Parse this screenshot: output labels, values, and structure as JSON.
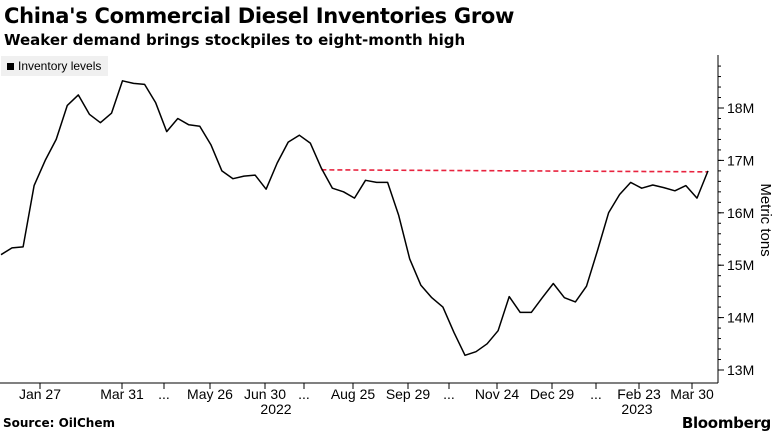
{
  "header": {
    "title": "China's Commercial Diesel Inventories Grow",
    "subtitle": "Weaker demand brings stockpiles to eight-month high"
  },
  "footer": {
    "source": "Source: OilChem",
    "brand": "Bloomberg"
  },
  "colors": {
    "line": "#000000",
    "reference_line": "#e8233f",
    "legend_bg": "#f0f0f0"
  },
  "chart_data": {
    "type": "line",
    "title": "China's Commercial Diesel Inventories Grow",
    "subtitle": "Weaker demand brings stockpiles to eight-month high",
    "ylabel": "Metric tons",
    "ylim": [
      12.8,
      18.95
    ],
    "yticks": [
      13,
      14,
      15,
      16,
      17,
      18
    ],
    "ytick_labels": [
      "13M",
      "14M",
      "15M",
      "16M",
      "17M",
      "18M"
    ],
    "y_axis_position": "right",
    "legend": {
      "entries": [
        "Inventory levels"
      ],
      "position": "top-left"
    },
    "grid": false,
    "x_tick_labels": [
      "Jan 27",
      "Mar 31",
      "...",
      "May 26",
      "Jun 30",
      "...",
      "Aug 25",
      "Sep 29",
      "...",
      "Nov 24",
      "Dec 29",
      "...",
      "Feb 23",
      "Mar 30"
    ],
    "x_year_labels": [
      "2022",
      "2023"
    ],
    "series": [
      {
        "name": "Inventory levels",
        "values": [
          15.2,
          15.33,
          15.35,
          16.52,
          17.0,
          17.4,
          18.05,
          18.25,
          17.88,
          17.72,
          17.9,
          18.52,
          18.47,
          18.45,
          18.1,
          17.55,
          17.8,
          17.68,
          17.65,
          17.3,
          16.8,
          16.65,
          16.7,
          16.72,
          16.45,
          16.95,
          17.35,
          17.48,
          17.33,
          16.85,
          16.47,
          16.4,
          16.28,
          16.62,
          16.58,
          16.58,
          15.95,
          15.12,
          14.62,
          14.38,
          14.2,
          13.72,
          13.28,
          13.35,
          13.5,
          13.75,
          14.4,
          14.1,
          14.1,
          14.38,
          14.65,
          14.38,
          14.3,
          14.6,
          15.28,
          16.0,
          16.35,
          16.58,
          16.47,
          16.53,
          16.48,
          16.42,
          16.52,
          16.28,
          16.8
        ]
      }
    ],
    "reference_line": {
      "value": 16.82,
      "from_index": 29,
      "to_index": 64,
      "style": "dashed"
    }
  }
}
